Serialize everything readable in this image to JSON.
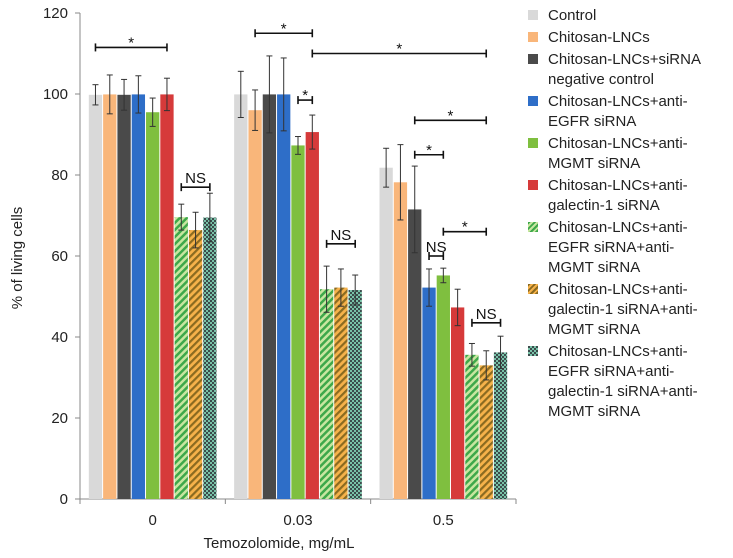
{
  "chart_data": {
    "type": "bar",
    "xlabel": "Temozolomide, mg/mL",
    "ylabel": "% of living cells",
    "ylim": [
      0,
      120
    ],
    "yticks": [
      0,
      20,
      40,
      60,
      80,
      100,
      120
    ],
    "categories": [
      "0",
      "0.03",
      "0.5"
    ],
    "legend_position": "right",
    "series": [
      {
        "name": "Control",
        "color": "#d9d9d9",
        "pattern": "solid",
        "values": [
          99.8,
          99.9,
          81.8
        ],
        "errors": [
          2.5,
          5.7,
          4.8
        ]
      },
      {
        "name": "Chitosan-LNCs",
        "color": "#f9b67a",
        "pattern": "solid",
        "values": [
          99.9,
          96.0,
          78.2
        ],
        "errors": [
          4.8,
          5.0,
          9.3
        ]
      },
      {
        "name": "Chitosan-LNCs+siRNA negative control",
        "color": "#4a4a4a",
        "pattern": "solid",
        "values": [
          99.8,
          99.9,
          71.5
        ],
        "errors": [
          3.8,
          9.5,
          10.7
        ]
      },
      {
        "name": "Chitosan-LNCs+anti-EGFR siRNA",
        "color": "#2e6ec8",
        "pattern": "solid",
        "values": [
          99.9,
          99.9,
          52.2
        ],
        "errors": [
          4.6,
          9.0,
          4.6
        ]
      },
      {
        "name": "Chitosan-LNCs+anti-MGMT siRNA",
        "color": "#7fbf3f",
        "pattern": "solid",
        "values": [
          95.5,
          87.3,
          55.2
        ],
        "errors": [
          3.5,
          2.2,
          1.8
        ]
      },
      {
        "name": "Chitosan-LNCs+anti-galectin-1 siRNA",
        "color": "#d63a3a",
        "pattern": "solid",
        "values": [
          99.9,
          90.6,
          47.3
        ],
        "errors": [
          4.0,
          4.2,
          4.5
        ]
      },
      {
        "name": "Chitosan-LNCs+anti-EGFR siRNA+anti-MGMT siRNA",
        "color": "#3ea84a",
        "pattern": "striped-green",
        "values": [
          69.6,
          51.8,
          35.6
        ],
        "errors": [
          3.2,
          5.7,
          2.8
        ]
      },
      {
        "name": "Chitosan-LNCs+anti-galectin-1 siRNA+anti-MGMT siRNA",
        "color": "#f6b24a",
        "pattern": "striped-orange",
        "values": [
          66.4,
          52.2,
          33.0
        ],
        "errors": [
          4.4,
          4.6,
          3.6
        ]
      },
      {
        "name": "Chitosan-LNCs+anti-EGFR siRNA+anti-galectin-1 siRNA+anti-MGMT siRNA",
        "color": "#3b4c4c",
        "pattern": "checker",
        "values": [
          69.5,
          51.6,
          36.2
        ],
        "errors": [
          6.0,
          3.7,
          4.0
        ]
      }
    ],
    "annotations": [
      {
        "label": "*",
        "group": 0,
        "from_series": 0,
        "to_series": 5,
        "y": 111.5
      },
      {
        "label": "NS",
        "group": 0,
        "from_series": 6,
        "to_series": 8,
        "y": 77
      },
      {
        "label": "*",
        "group": 1,
        "from_series": 1,
        "to_series": 5,
        "y": 115
      },
      {
        "label": "*",
        "group": 1,
        "from_series": 4,
        "to_series": 5,
        "y": 98.5
      },
      {
        "label": "NS",
        "group": 1,
        "from_series": 6,
        "to_series": 8,
        "y": 63
      },
      {
        "label": "*",
        "group_from": 1,
        "group_to": 2,
        "from_series": 5,
        "to_series": 7,
        "y": 110
      },
      {
        "label": "*",
        "group": 2,
        "from_series": 2,
        "to_series": 7,
        "y": 93.5
      },
      {
        "label": "*",
        "group": 2,
        "from_series": 2,
        "to_series": 4,
        "y": 85
      },
      {
        "label": "NS",
        "group": 2,
        "from_series": 3,
        "to_series": 4,
        "y": 60
      },
      {
        "label": "*",
        "group": 2,
        "from_series": 4,
        "to_series": 7,
        "y": 66
      },
      {
        "label": "NS",
        "group": 2,
        "from_series": 6,
        "to_series": 8,
        "y": 43.5
      }
    ]
  },
  "legend": {
    "items": [
      {
        "lines": [
          "Control"
        ],
        "swatch": "solid",
        "color": "#d9d9d9"
      },
      {
        "lines": [
          "Chitosan-LNCs"
        ],
        "swatch": "solid",
        "color": "#f9b67a"
      },
      {
        "lines": [
          "Chitosan-LNCs+siRNA",
          "negative control"
        ],
        "swatch": "solid",
        "color": "#4a4a4a"
      },
      {
        "lines": [
          "Chitosan-LNCs+anti-",
          "EGFR siRNA"
        ],
        "swatch": "solid",
        "color": "#2e6ec8"
      },
      {
        "lines": [
          "Chitosan-LNCs+anti-",
          "MGMT siRNA"
        ],
        "swatch": "solid",
        "color": "#7fbf3f"
      },
      {
        "lines": [
          "Chitosan-LNCs+anti-",
          "galectin-1 siRNA"
        ],
        "swatch": "solid",
        "color": "#d63a3a"
      },
      {
        "lines": [
          "Chitosan-LNCs+anti-",
          "EGFR siRNA+anti-",
          "MGMT siRNA"
        ],
        "swatch": "striped-green",
        "color": "#3ea84a"
      },
      {
        "lines": [
          "Chitosan-LNCs+anti-",
          "galectin-1 siRNA+anti-",
          "MGMT siRNA"
        ],
        "swatch": "striped-orange",
        "color": "#f6b24a"
      },
      {
        "lines": [
          "Chitosan-LNCs+anti-",
          "EGFR siRNA+anti-",
          "galectin-1 siRNA+anti-",
          "MGMT siRNA"
        ],
        "swatch": "checker",
        "color": "#3b4c4c"
      }
    ]
  }
}
